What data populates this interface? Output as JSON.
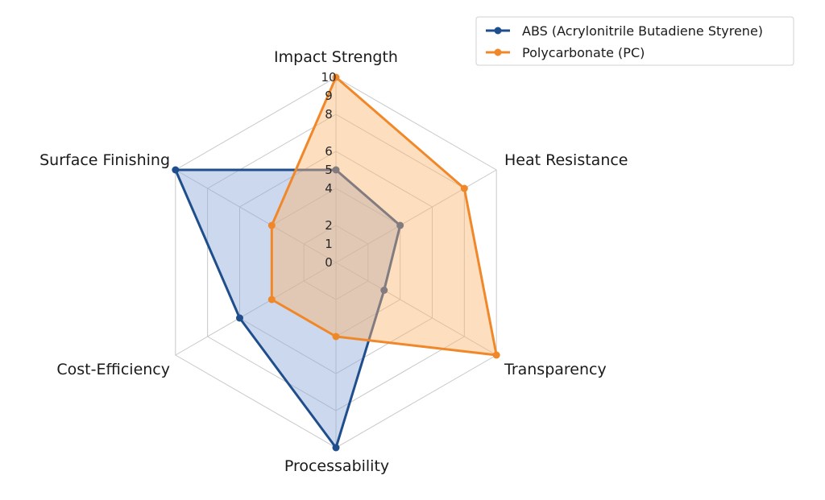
{
  "chart_data": {
    "type": "radar",
    "axes": [
      "Impact Strength",
      "Heat Resistance",
      "Transparency",
      "Processability",
      "Cost-Efficiency",
      "Surface Finishing"
    ],
    "rlim": [
      0,
      10
    ],
    "ticks": [
      "0",
      "1",
      "2",
      "4",
      "5",
      "6",
      "8",
      "9",
      "10"
    ],
    "tick_values": [
      0,
      1,
      2,
      4,
      5,
      6,
      8,
      9,
      10
    ],
    "grid": true,
    "grid_levels": [
      2,
      4,
      6,
      8,
      10
    ],
    "legend_position": "top-right",
    "series": [
      {
        "name": "ABS (Acrylonitrile Butadiene Styrene)",
        "color": "#1f4e8c",
        "fill": "#8fa9d8",
        "values": [
          5,
          4,
          3,
          10,
          6,
          10
        ]
      },
      {
        "name": "Polycarbonate (PC)",
        "color": "#f0882a",
        "fill": "#fbb672",
        "values": [
          10,
          8,
          10,
          4,
          4,
          4
        ]
      }
    ]
  }
}
